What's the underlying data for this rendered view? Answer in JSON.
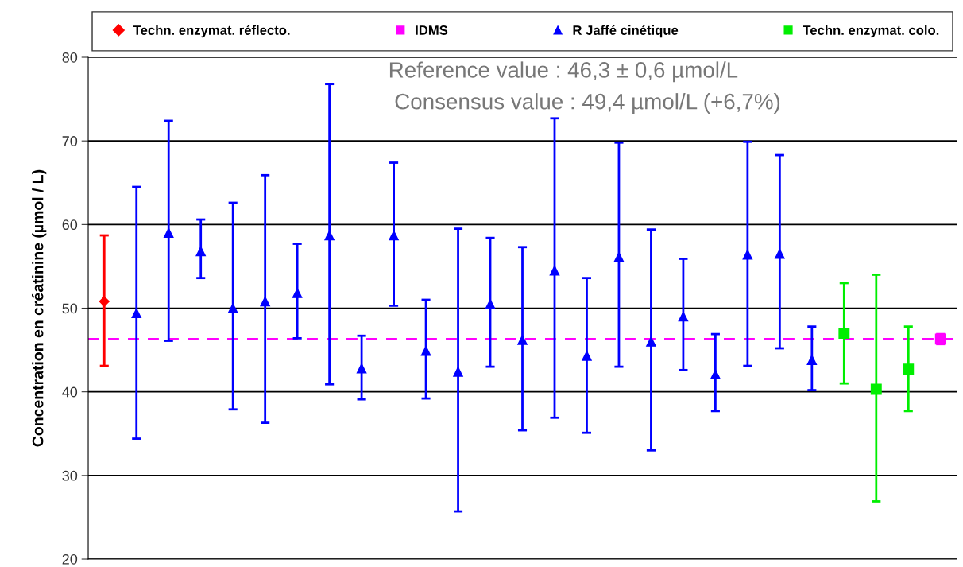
{
  "chart_data": {
    "type": "scatter",
    "ylabel": "Concentration en créatinine (µmol / L)",
    "categories": [
      null,
      null,
      null,
      null,
      null,
      null,
      null,
      null,
      null,
      null,
      null,
      null,
      null,
      null,
      null,
      null,
      null,
      null,
      null,
      null,
      null,
      null,
      null,
      null,
      null,
      null,
      null
    ],
    "ylim": [
      20,
      80
    ],
    "yticks": [
      20,
      30,
      40,
      50,
      60,
      70,
      80
    ],
    "grid": "y",
    "legend": "top",
    "series": [
      {
        "name": "Techn. enzymat. réflecto.",
        "color": "#ff0000",
        "marker": "diamond",
        "values": [
          50.8,
          null,
          null,
          null,
          null,
          null,
          null,
          null,
          null,
          null,
          null,
          null,
          null,
          null,
          null,
          null,
          null,
          null,
          null,
          null,
          null,
          null,
          null,
          null,
          null,
          null,
          null
        ],
        "errors": [
          [
            43.1,
            58.7
          ],
          null,
          null,
          null,
          null,
          null,
          null,
          null,
          null,
          null,
          null,
          null,
          null,
          null,
          null,
          null,
          null,
          null,
          null,
          null,
          null,
          null,
          null,
          null,
          null,
          null,
          null
        ]
      },
      {
        "name": "IDMS",
        "color": "#ff00ff",
        "marker": "square",
        "values": [
          null,
          null,
          null,
          null,
          null,
          null,
          null,
          null,
          null,
          null,
          null,
          null,
          null,
          null,
          null,
          null,
          null,
          null,
          null,
          null,
          null,
          null,
          null,
          null,
          null,
          null,
          46.3
        ],
        "errors": [
          null,
          null,
          null,
          null,
          null,
          null,
          null,
          null,
          null,
          null,
          null,
          null,
          null,
          null,
          null,
          null,
          null,
          null,
          null,
          null,
          null,
          null,
          null,
          null,
          null,
          null,
          0.6
        ]
      },
      {
        "name": "R Jaffé cinétique",
        "color": "#0000ff",
        "marker": "triangle",
        "values": [
          null,
          49.4,
          59.0,
          56.8,
          50.0,
          50.8,
          51.8,
          58.7,
          42.8,
          58.7,
          44.9,
          42.4,
          50.5,
          46.2,
          54.5,
          44.3,
          56.1,
          46.0,
          49.0,
          42.1,
          56.4,
          56.5,
          43.8,
          null,
          null,
          null,
          null
        ],
        "errors": [
          null,
          [
            34.4,
            64.5
          ],
          [
            46.1,
            72.4
          ],
          [
            53.6,
            60.6
          ],
          [
            37.9,
            62.6
          ],
          [
            36.3,
            65.9
          ],
          [
            46.4,
            57.7
          ],
          [
            40.9,
            76.8
          ],
          [
            39.1,
            46.7
          ],
          [
            50.3,
            67.4
          ],
          [
            39.2,
            51.0
          ],
          [
            25.7,
            59.5
          ],
          [
            43.0,
            58.4
          ],
          [
            35.4,
            57.3
          ],
          [
            36.9,
            72.7
          ],
          [
            35.1,
            53.6
          ],
          [
            43.0,
            69.8
          ],
          [
            33.0,
            59.4
          ],
          [
            42.6,
            55.9
          ],
          [
            37.7,
            46.9
          ],
          [
            43.1,
            69.9
          ],
          [
            45.2,
            68.3
          ],
          [
            40.2,
            47.8
          ],
          null,
          null,
          null,
          null
        ]
      },
      {
        "name": "Techn. enzymat. colo.",
        "color": "#00ee00",
        "marker": "square",
        "values": [
          null,
          null,
          null,
          null,
          null,
          null,
          null,
          null,
          null,
          null,
          null,
          null,
          null,
          null,
          null,
          null,
          null,
          null,
          null,
          null,
          null,
          null,
          null,
          47.0,
          40.3,
          42.7,
          null
        ],
        "errors": [
          null,
          null,
          null,
          null,
          null,
          null,
          null,
          null,
          null,
          null,
          null,
          null,
          null,
          null,
          null,
          null,
          null,
          null,
          null,
          null,
          null,
          null,
          null,
          [
            41.0,
            53.0
          ],
          [
            26.9,
            54.0
          ],
          [
            37.7,
            47.8
          ],
          null
        ]
      }
    ],
    "ref_lines": [
      {
        "axis": "y",
        "value": 46.3,
        "color": "#ff00ff",
        "line_style": "dashed"
      }
    ],
    "annotations": [
      "Reference value : 46,3 ± 0,6 µmol/L",
      "Consensus value : 49,4 µmol/L (+6,7%)"
    ]
  }
}
